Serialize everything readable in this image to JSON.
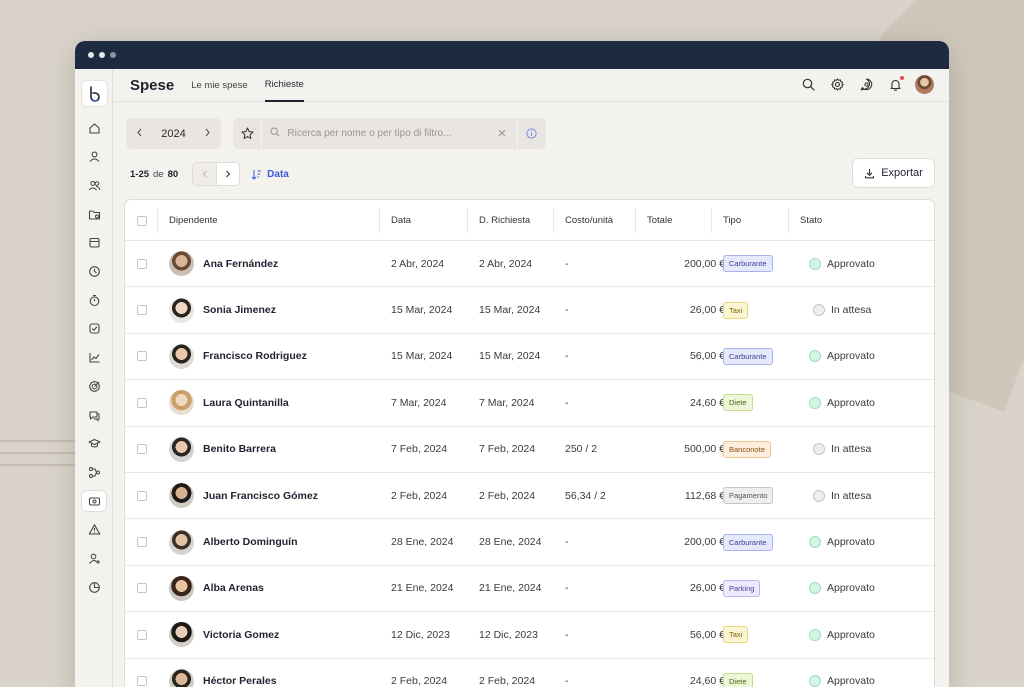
{
  "app": {
    "title": "Spese"
  },
  "tabs": [
    {
      "label": "Le mie spese",
      "active": false
    },
    {
      "label": "Richieste",
      "active": true
    }
  ],
  "filters": {
    "year": "2024",
    "search_placeholder": "Ricerca per nome o per tipo di filtro..."
  },
  "pagination": {
    "range": "1-25",
    "of": "de",
    "total": "80"
  },
  "sort": {
    "label": "Data"
  },
  "export": {
    "label": "Exportar"
  },
  "columns": [
    "Dipendente",
    "Data",
    "D. Richiesta",
    "Costo/unità",
    "Totale",
    "Tipo",
    "Stato"
  ],
  "rows": [
    {
      "name": "Ana Fernández",
      "date": "2 Abr, 2024",
      "request_date": "2 Abr, 2024",
      "unit_cost": "-",
      "total": "200,00 €",
      "type": "Carburante",
      "status": "Approvato"
    },
    {
      "name": "Sonia Jimenez",
      "date": "15 Mar, 2024",
      "request_date": "15 Mar, 2024",
      "unit_cost": "-",
      "total": "26,00 €",
      "type": "Taxi",
      "status": "In attesa"
    },
    {
      "name": "Francisco  Rodriguez",
      "date": "15 Mar, 2024",
      "request_date": "15 Mar, 2024",
      "unit_cost": "-",
      "total": "56,00 €",
      "type": "Carburante",
      "status": "Approvato"
    },
    {
      "name": "Laura Quintanilla",
      "date": "7 Mar, 2024",
      "request_date": "7 Mar, 2024",
      "unit_cost": "-",
      "total": "24,60 €",
      "type": "Diete",
      "status": "Approvato"
    },
    {
      "name": "Benito Barrera",
      "date": "7 Feb, 2024",
      "request_date": "7 Feb, 2024",
      "unit_cost": "250 / 2",
      "total": "500,00 €",
      "type": "Banconote",
      "status": "In attesa"
    },
    {
      "name": "Juan Francisco Gómez",
      "date": "2 Feb, 2024",
      "request_date": "2 Feb, 2024",
      "unit_cost": "56,34 / 2",
      "total": "112,68 €",
      "type": "Pagamento",
      "status": "In attesa"
    },
    {
      "name": "Alberto Dominguín",
      "date": "28 Ene, 2024",
      "request_date": "28 Ene, 2024",
      "unit_cost": "-",
      "total": "200,00 €",
      "type": "Carburante",
      "status": "Approvato"
    },
    {
      "name": "Alba Arenas",
      "date": "21 Ene, 2024",
      "request_date": "21 Ene, 2024",
      "unit_cost": "-",
      "total": "26,00 €",
      "type": "Parking",
      "status": "Approvato"
    },
    {
      "name": "Victoria Gomez",
      "date": "12 Dic, 2023",
      "request_date": "12 Dic, 2023",
      "unit_cost": "-",
      "total": "56,00 €",
      "type": "Taxi",
      "status": "Approvato"
    },
    {
      "name": "Héctor Perales",
      "date": "2 Feb, 2024",
      "request_date": "2 Feb, 2024",
      "unit_cost": "-",
      "total": "24,60 €",
      "type": "Diete",
      "status": "Approvato"
    }
  ],
  "tag_colors": {
    "Carburante": {
      "bg": "#e6e8fb",
      "border": "#aab2ee",
      "text": "#3b4596"
    },
    "Taxi": {
      "bg": "#fcf5d2",
      "border": "#e8d77c",
      "text": "#7a6510"
    },
    "Diete": {
      "bg": "#eef6d8",
      "border": "#c7dd8c",
      "text": "#4f6319"
    },
    "Banconote": {
      "bg": "#fdeedd",
      "border": "#f0c48f",
      "text": "#8a4f12"
    },
    "Pagamento": {
      "bg": "#eeeeee",
      "border": "#c7c7c7",
      "text": "#555555"
    },
    "Parking": {
      "bg": "#eceafd",
      "border": "#bcb6f0",
      "text": "#4a3f9c"
    }
  },
  "status_colors": {
    "Approvato": {
      "bg": "#d4f5e4",
      "border": "#9fdcbc"
    },
    "In attesa": {
      "bg": "#eeeeee",
      "border": "#c4c4c4"
    }
  },
  "sidebar_icons": [
    "home-icon",
    "user-icon",
    "users-icon",
    "folder-icon",
    "calendar-icon",
    "clock-icon",
    "timer-icon",
    "checkbox-icon",
    "chart-icon",
    "target-icon",
    "chat-icon",
    "graduation-icon",
    "workflow-icon",
    "expenses-icon",
    "alert-icon",
    "user-add-icon",
    "pie-chart-icon"
  ]
}
